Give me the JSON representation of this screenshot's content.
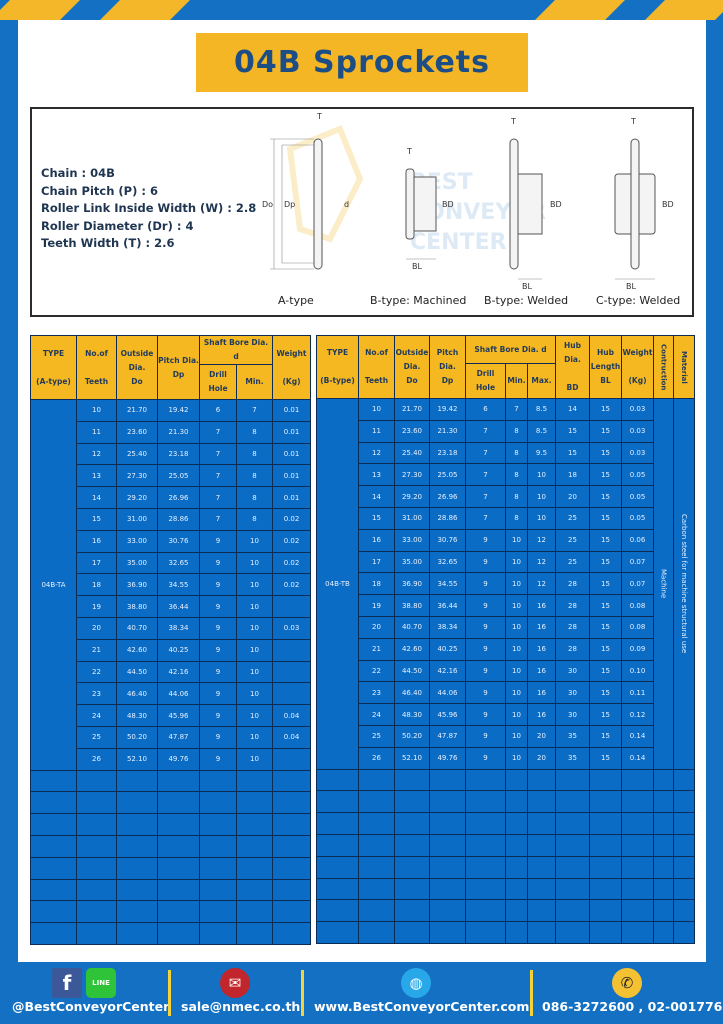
{
  "title": "04B Sprockets",
  "specs": [
    "Chain : 04B",
    "Chain Pitch (P) : 6",
    "Roller Link Inside Width (W) : 2.8",
    "Roller Diameter (Dr) : 4",
    "Teeth Width (T) : 2.6"
  ],
  "diagram": {
    "captions": [
      "A-type",
      "B-type: Machined",
      "B-type: Welded",
      "C-type: Welded"
    ],
    "labels": {
      "T": "T",
      "Do": "Do",
      "Dp": "Dp",
      "d": "d",
      "BD": "BD",
      "BL": "BL"
    },
    "watermark": "BEST CONVEYOR CENTER"
  },
  "colors": {
    "blue": "#1370c2",
    "yellow": "#f5b626",
    "cell": "#0b6cc6",
    "title_text": "#1c4d85"
  },
  "table_a": {
    "headers": {
      "type": [
        "TYPE",
        "(A-type)"
      ],
      "teeth": [
        "No.of",
        "Teeth"
      ],
      "do": [
        "Outside",
        "Dia.",
        "Do"
      ],
      "dp": [
        "Pitch Dia.",
        "Dp"
      ],
      "bore": "Shaft Bore Dia. d",
      "drill": "Drill Hole",
      "min": "Min.",
      "weight": [
        "Weight",
        "(Kg)"
      ]
    },
    "type_value": "04B-TA",
    "rows": [
      [
        "10",
        "21.70",
        "19.42",
        "6",
        "7",
        "0.01"
      ],
      [
        "11",
        "23.60",
        "21.30",
        "7",
        "8",
        "0.01"
      ],
      [
        "12",
        "25.40",
        "23.18",
        "7",
        "8",
        "0.01"
      ],
      [
        "13",
        "27.30",
        "25.05",
        "7",
        "8",
        "0.01"
      ],
      [
        "14",
        "29.20",
        "26.96",
        "7",
        "8",
        "0.01"
      ],
      [
        "15",
        "31.00",
        "28.86",
        "7",
        "8",
        "0.02"
      ],
      [
        "16",
        "33.00",
        "30.76",
        "9",
        "10",
        "0.02"
      ],
      [
        "17",
        "35.00",
        "32.65",
        "9",
        "10",
        "0.02"
      ],
      [
        "18",
        "36.90",
        "34.55",
        "9",
        "10",
        "0.02"
      ],
      [
        "19",
        "38.80",
        "36.44",
        "9",
        "10",
        ""
      ],
      [
        "20",
        "40.70",
        "38.34",
        "9",
        "10",
        "0.03"
      ],
      [
        "21",
        "42.60",
        "40.25",
        "9",
        "10",
        ""
      ],
      [
        "22",
        "44.50",
        "42.16",
        "9",
        "10",
        ""
      ],
      [
        "23",
        "46.40",
        "44.06",
        "9",
        "10",
        ""
      ],
      [
        "24",
        "48.30",
        "45.96",
        "9",
        "10",
        "0.04"
      ],
      [
        "25",
        "50.20",
        "47.87",
        "9",
        "10",
        "0.04"
      ],
      [
        "26",
        "52.10",
        "49.76",
        "9",
        "10",
        ""
      ]
    ]
  },
  "table_b": {
    "headers": {
      "type": [
        "TYPE",
        "(B-type)"
      ],
      "teeth": [
        "No.of",
        "Teeth"
      ],
      "do": [
        "Outside",
        "Dia.",
        "Do"
      ],
      "dp": [
        "Pitch Dia.",
        "Dp"
      ],
      "bore": "Shaft Bore Dia. d",
      "drill": "Drill Hole",
      "min": "Min.",
      "max": "Max.",
      "bd": [
        "Hub Dia.",
        "BD"
      ],
      "bl": [
        "Hub",
        "Length",
        "BL"
      ],
      "weight": [
        "Weight",
        "(Kg)"
      ],
      "construction": "Contruction",
      "material": "Material"
    },
    "type_value": "04B-TB",
    "construction_value": "Machine",
    "material_value": "Carbon steel for machine structural use",
    "rows": [
      [
        "10",
        "21.70",
        "19.42",
        "6",
        "7",
        "8.5",
        "14",
        "15",
        "0.03"
      ],
      [
        "11",
        "23.60",
        "21.30",
        "7",
        "8",
        "8.5",
        "15",
        "15",
        "0.03"
      ],
      [
        "12",
        "25.40",
        "23.18",
        "7",
        "8",
        "9.5",
        "15",
        "15",
        "0.03"
      ],
      [
        "13",
        "27.30",
        "25.05",
        "7",
        "8",
        "10",
        "18",
        "15",
        "0.05"
      ],
      [
        "14",
        "29.20",
        "26.96",
        "7",
        "8",
        "10",
        "20",
        "15",
        "0.05"
      ],
      [
        "15",
        "31.00",
        "28.86",
        "7",
        "8",
        "10",
        "25",
        "15",
        "0.05"
      ],
      [
        "16",
        "33.00",
        "30.76",
        "9",
        "10",
        "12",
        "25",
        "15",
        "0.06"
      ],
      [
        "17",
        "35.00",
        "32.65",
        "9",
        "10",
        "12",
        "25",
        "15",
        "0.07"
      ],
      [
        "18",
        "36.90",
        "34.55",
        "9",
        "10",
        "12",
        "28",
        "15",
        "0.07"
      ],
      [
        "19",
        "38.80",
        "36.44",
        "9",
        "10",
        "16",
        "28",
        "15",
        "0.08"
      ],
      [
        "20",
        "40.70",
        "38.34",
        "9",
        "10",
        "16",
        "28",
        "15",
        "0.08"
      ],
      [
        "21",
        "42.60",
        "40.25",
        "9",
        "10",
        "16",
        "28",
        "15",
        "0.09"
      ],
      [
        "22",
        "44.50",
        "42.16",
        "9",
        "10",
        "16",
        "30",
        "15",
        "0.10"
      ],
      [
        "23",
        "46.40",
        "44.06",
        "9",
        "10",
        "16",
        "30",
        "15",
        "0.11"
      ],
      [
        "24",
        "48.30",
        "45.96",
        "9",
        "10",
        "16",
        "30",
        "15",
        "0.12"
      ],
      [
        "25",
        "50.20",
        "47.87",
        "9",
        "10",
        "20",
        "35",
        "15",
        "0.14"
      ],
      [
        "26",
        "52.10",
        "49.76",
        "9",
        "10",
        "20",
        "35",
        "15",
        "0.14"
      ]
    ]
  },
  "footer": {
    "social": "@BestConveyorCenter",
    "line_icon_text": "LINE",
    "email": "sale@nmec.co.th",
    "website": "www.BestConveyorCenter.com",
    "phone": "086-3272600 , 02-0017766"
  }
}
